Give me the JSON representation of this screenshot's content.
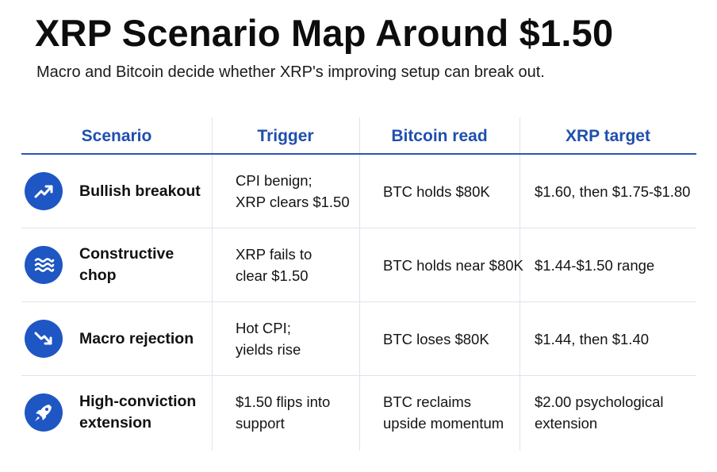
{
  "title": "XRP Scenario Map Around $1.50",
  "subtitle": "Macro and Bitcoin decide whether XRP's improving setup can break out.",
  "colors": {
    "accent": "#1e56c4",
    "header_text": "#1f4fae",
    "divider": "#dde3ee"
  },
  "columns": [
    "Scenario",
    "Trigger",
    "Bitcoin read",
    "XRP target"
  ],
  "rows": [
    {
      "icon": "trending-up-icon",
      "scenario": "Bullish breakout",
      "trigger": "CPI benign;\nXRP clears $1.50",
      "bitcoin": "BTC holds $80K",
      "target": "$1.60, then $1.75-$1.80"
    },
    {
      "icon": "waves-icon",
      "scenario": "Constructive chop",
      "trigger": "XRP fails to\nclear $1.50",
      "bitcoin": "BTC holds near $80K",
      "target": "$1.44-$1.50 range"
    },
    {
      "icon": "trending-down-icon",
      "scenario": "Macro rejection",
      "trigger": "Hot CPI;\nyields rise",
      "bitcoin": "BTC loses $80K",
      "target": "$1.44, then $1.40"
    },
    {
      "icon": "rocket-icon",
      "scenario": "High-conviction\nextension",
      "trigger": "$1.50 flips into\nsupport",
      "bitcoin": "BTC reclaims\nupside momentum",
      "target": "$2.00 psychological\nextension"
    }
  ]
}
